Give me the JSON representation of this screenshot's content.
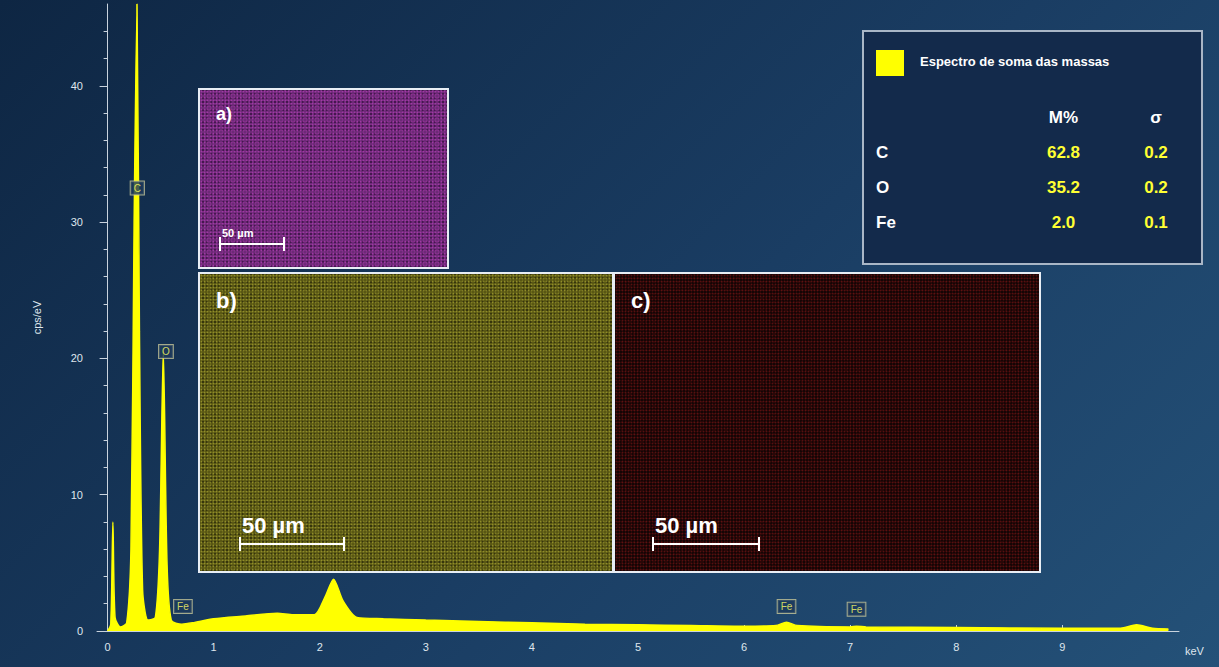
{
  "chart_data": {
    "type": "line",
    "color": "#ffff00",
    "x_label": "keV",
    "y_label": "cps/eV",
    "x": [
      0,
      0.03,
      0.05,
      0.07,
      0.12,
      0.18,
      0.22,
      0.25,
      0.277,
      0.3,
      0.33,
      0.38,
      0.45,
      0.49,
      0.525,
      0.56,
      0.6,
      0.7,
      0.8,
      1.0,
      1.3,
      1.6,
      1.75,
      1.95,
      2.05,
      2.13,
      2.22,
      2.35,
      2.6,
      3.0,
      3.5,
      4.0,
      4.5,
      5.0,
      5.5,
      6.0,
      6.3,
      6.4,
      6.5,
      7.0,
      7.06,
      7.15,
      8.0,
      9.0,
      9.55,
      9.7,
      9.85,
      10.0
    ],
    "values": [
      0,
      0.5,
      8,
      1,
      0.3,
      0.6,
      6,
      30,
      46,
      22,
      3,
      0.8,
      1,
      6,
      20.5,
      5,
      0.8,
      0.5,
      0.6,
      0.9,
      1.1,
      1.3,
      1.2,
      1.2,
      2.5,
      3.8,
      2.2,
      1.0,
      0.9,
      0.8,
      0.7,
      0.6,
      0.5,
      0.45,
      0.4,
      0.35,
      0.4,
      0.65,
      0.4,
      0.3,
      0.35,
      0.3,
      0.25,
      0.2,
      0.2,
      0.45,
      0.2,
      0.15
    ],
    "xlim": [
      -0.1,
      10.1
    ],
    "xticks": [
      0,
      1,
      2,
      3,
      4,
      5,
      6,
      7,
      8,
      9
    ],
    "ylim": [
      0,
      46
    ],
    "yticks": [
      0,
      10,
      20,
      30,
      40
    ],
    "grid": false,
    "annotations": [
      {
        "text": "C",
        "x": 0.28,
        "y": 32.5
      },
      {
        "text": "O",
        "x": 0.55,
        "y": 20.5
      },
      {
        "text": "Fe",
        "x": 0.71,
        "y": 1.8
      },
      {
        "text": "Fe",
        "x": 6.4,
        "y": 1.8
      },
      {
        "text": "Fe",
        "x": 7.06,
        "y": 1.6
      }
    ],
    "insets": [
      {
        "label": "a)",
        "scale_bar": "50 µm"
      },
      {
        "label": "b)",
        "scale_bar": "50 µm"
      },
      {
        "label": "c)",
        "scale_bar": "50 µm"
      }
    ],
    "table": {
      "title": "Espectro de soma das massas",
      "columns": [
        "",
        "M%",
        "σ"
      ],
      "rows": [
        [
          "C",
          "62.8",
          "0.2"
        ],
        [
          "O",
          "35.2",
          "0.2"
        ],
        [
          "Fe",
          "2.0",
          "0.1"
        ]
      ]
    }
  }
}
